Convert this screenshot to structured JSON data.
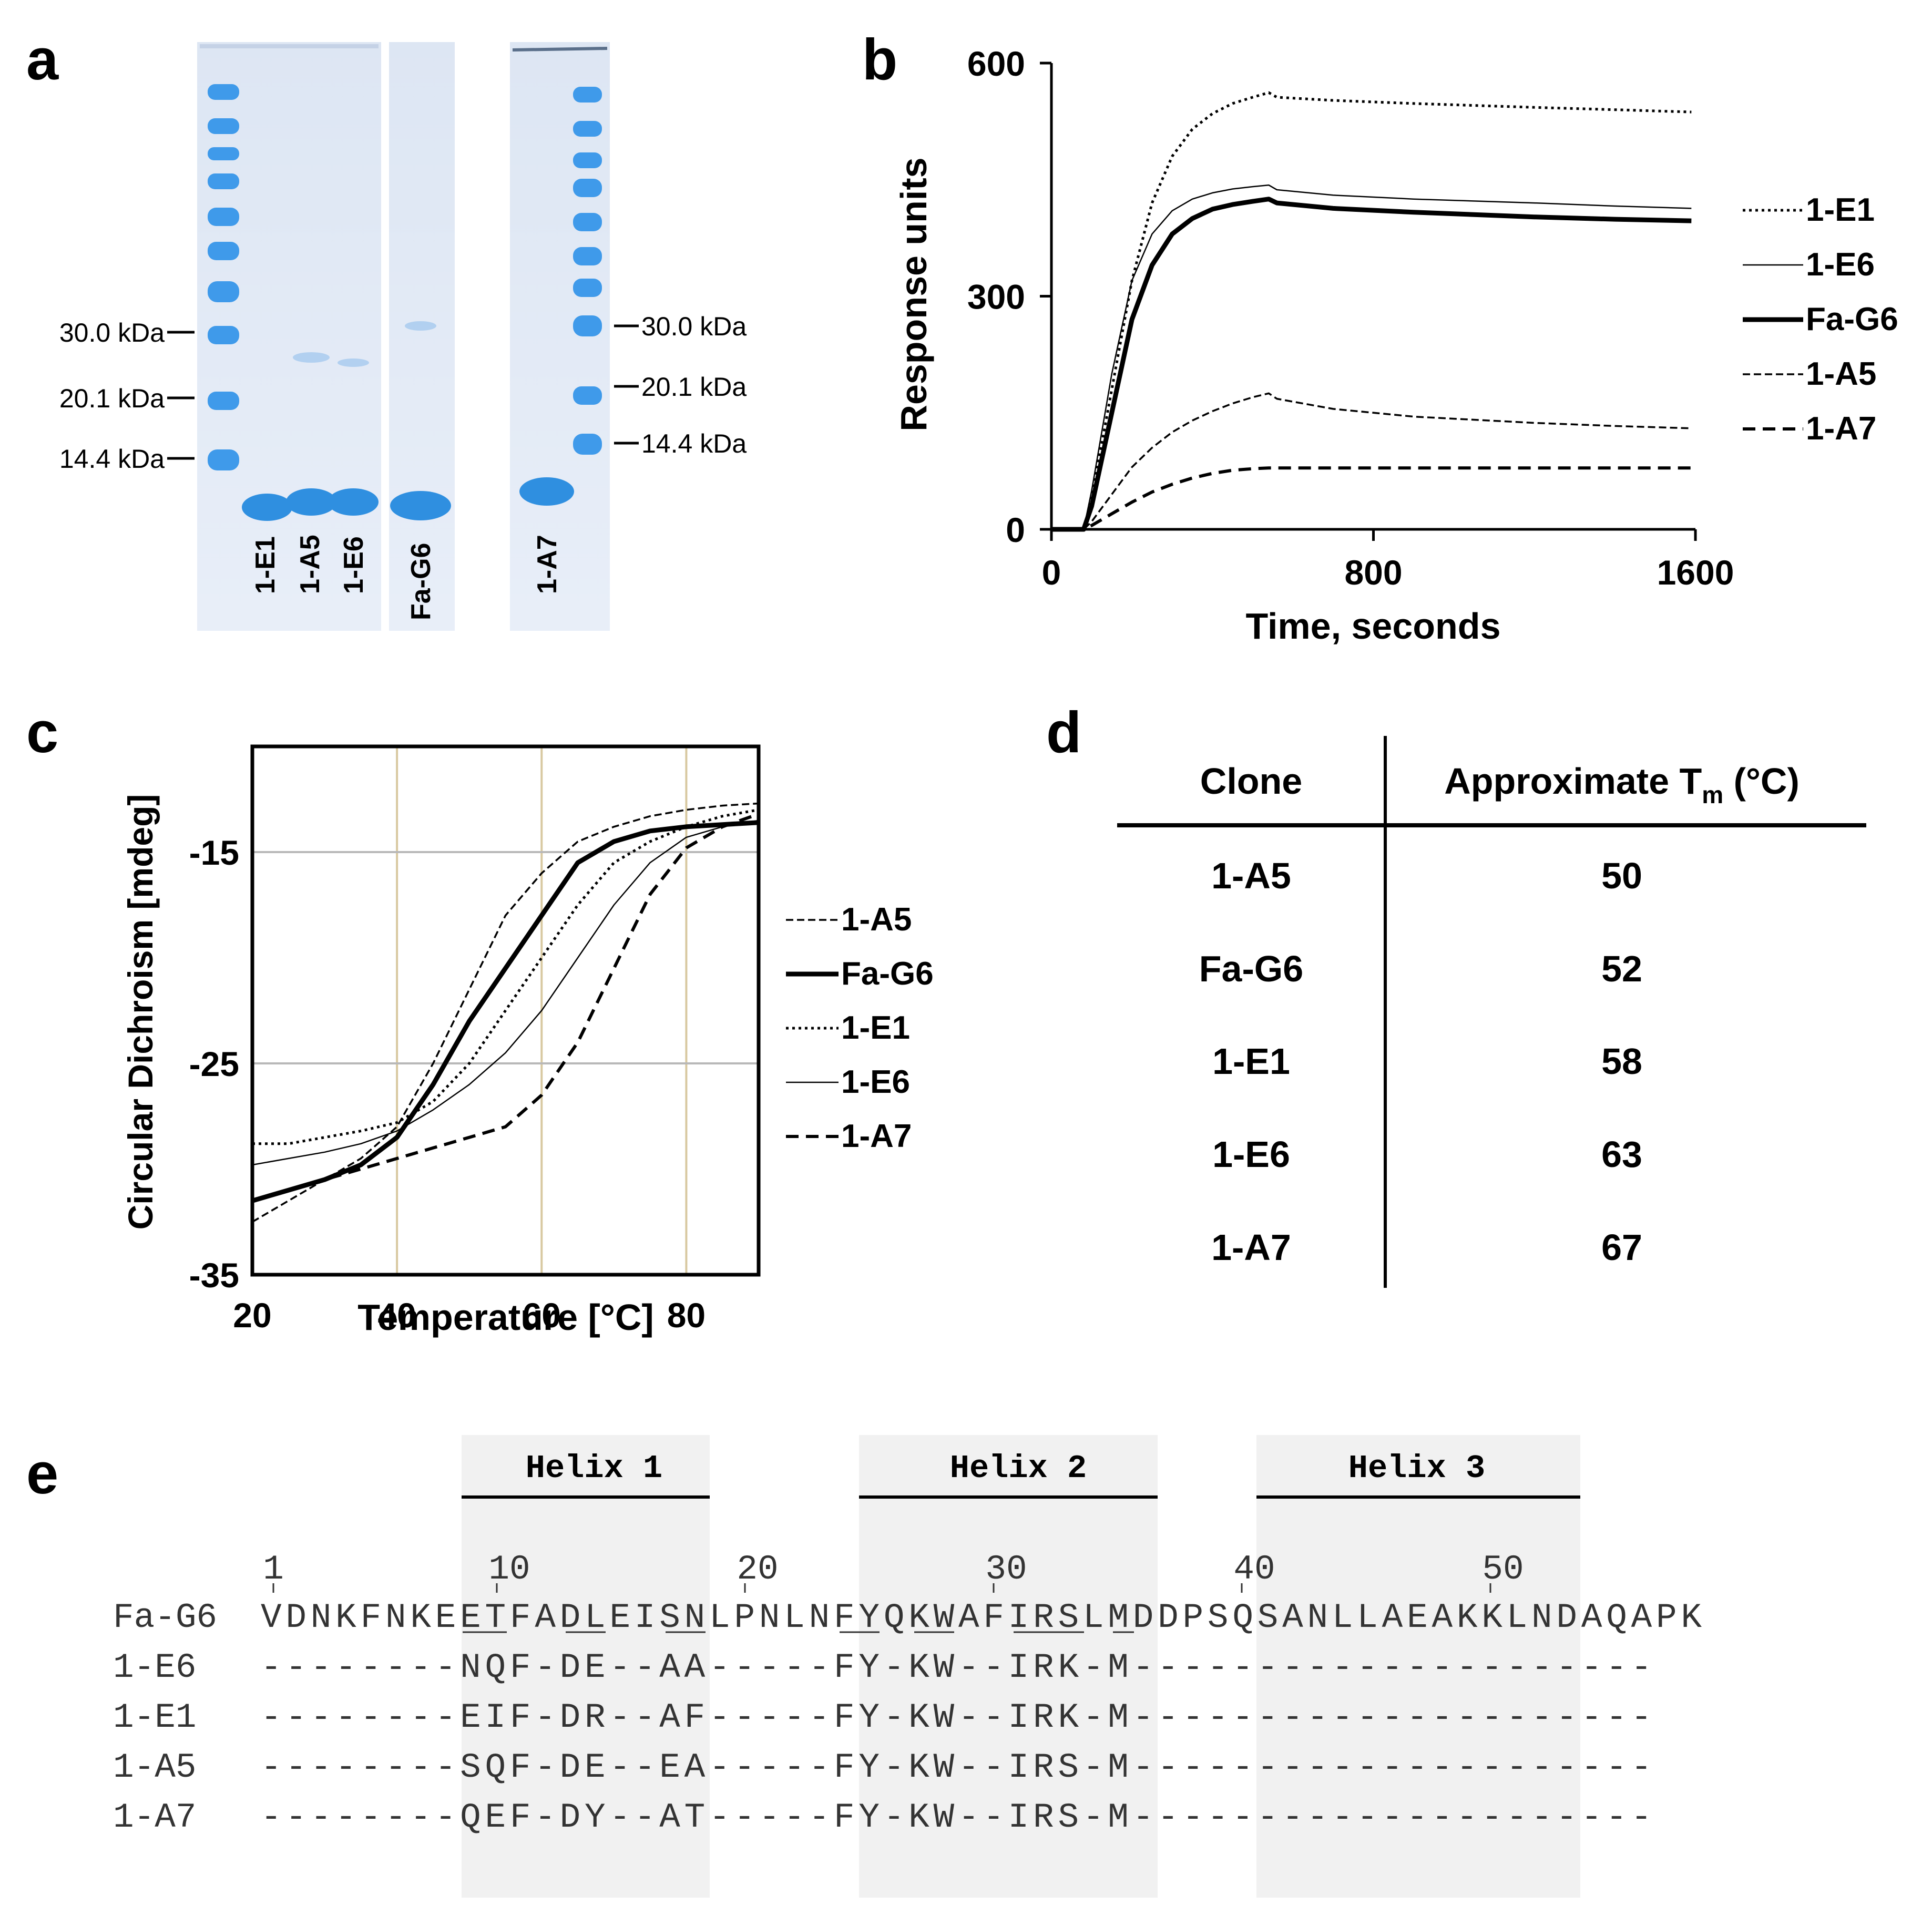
{
  "panel_labels": {
    "a": "a",
    "b": "b",
    "c": "c",
    "d": "d",
    "e": "e"
  },
  "gel": {
    "left_markers": [
      "30.0 kDa",
      "20.1 kDa",
      "14.4 kDa"
    ],
    "right_markers": [
      "30.0 kDa",
      "20.1 kDa",
      "14.4 kDa"
    ],
    "lanes": [
      "1-E1",
      "1-A5",
      "1-E6",
      "Fa-G6",
      "1-A7"
    ],
    "colors": {
      "band": "#2f8fe0",
      "gel_bg": "#e4ecf8"
    }
  },
  "chart_data": [
    {
      "panel": "b",
      "type": "line",
      "xlabel": "Time, seconds",
      "ylabel": "Response units",
      "xlim": [
        0,
        1600
      ],
      "ylim": [
        0,
        600
      ],
      "xticks": [
        0,
        800,
        1600
      ],
      "yticks": [
        0,
        300,
        600
      ],
      "grid": false,
      "legend_position": "right",
      "series": [
        {
          "name": "1-E1",
          "style": "dotted",
          "x": [
            0,
            80,
            100,
            150,
            200,
            250,
            300,
            350,
            400,
            450,
            500,
            540,
            560,
            700,
            900,
            1200,
            1400,
            1590
          ],
          "y": [
            0,
            0,
            40,
            180,
            320,
            420,
            480,
            515,
            535,
            548,
            556,
            562,
            556,
            552,
            548,
            543,
            540,
            537
          ]
        },
        {
          "name": "1-E6",
          "style": "thin",
          "x": [
            0,
            80,
            100,
            150,
            200,
            250,
            300,
            350,
            400,
            450,
            500,
            540,
            560,
            700,
            900,
            1200,
            1400,
            1590
          ],
          "y": [
            0,
            0,
            50,
            200,
            320,
            380,
            410,
            425,
            433,
            438,
            441,
            443,
            437,
            430,
            425,
            420,
            416,
            413
          ]
        },
        {
          "name": "Fa-G6",
          "style": "thick",
          "x": [
            0,
            80,
            100,
            150,
            200,
            250,
            300,
            350,
            400,
            450,
            500,
            540,
            560,
            700,
            900,
            1200,
            1400,
            1590
          ],
          "y": [
            0,
            0,
            30,
            150,
            270,
            340,
            380,
            400,
            412,
            418,
            422,
            425,
            420,
            413,
            408,
            402,
            399,
            397
          ]
        },
        {
          "name": "1-A5",
          "style": "dashed-fine",
          "x": [
            0,
            80,
            100,
            150,
            200,
            250,
            300,
            350,
            400,
            450,
            500,
            540,
            560,
            700,
            900,
            1200,
            1400,
            1590
          ],
          "y": [
            0,
            0,
            10,
            45,
            80,
            105,
            125,
            140,
            152,
            162,
            170,
            175,
            168,
            155,
            145,
            137,
            133,
            130
          ]
        },
        {
          "name": "1-A7",
          "style": "dashed",
          "x": [
            0,
            80,
            100,
            150,
            200,
            250,
            300,
            350,
            400,
            450,
            500,
            540,
            560,
            700,
            900,
            1200,
            1400,
            1590
          ],
          "y": [
            0,
            0,
            5,
            20,
            35,
            48,
            58,
            66,
            72,
            76,
            78,
            79,
            79,
            79,
            79,
            79,
            79,
            79
          ]
        }
      ]
    },
    {
      "panel": "c",
      "type": "line",
      "xlabel": "Temperature [°C]",
      "ylabel": "Circular Dichroism [mdeg]",
      "xlim": [
        20,
        90
      ],
      "ylim": [
        -35,
        -10
      ],
      "xticks": [
        20,
        40,
        60,
        80
      ],
      "yticks": [
        -35,
        -25,
        -15
      ],
      "grid": true,
      "legend_position": "right",
      "series": [
        {
          "name": "1-A5",
          "style": "dashed-fine",
          "x": [
            20,
            25,
            30,
            35,
            40,
            45,
            50,
            55,
            60,
            65,
            70,
            75,
            80,
            85,
            90
          ],
          "y": [
            -32.5,
            -31.5,
            -30.5,
            -29.5,
            -28,
            -25,
            -21.5,
            -18,
            -16,
            -14.5,
            -13.8,
            -13.3,
            -13,
            -12.8,
            -12.7
          ]
        },
        {
          "name": "Fa-G6",
          "style": "thick",
          "x": [
            20,
            25,
            30,
            35,
            40,
            45,
            50,
            55,
            60,
            65,
            70,
            75,
            80,
            85,
            90
          ],
          "y": [
            -31.5,
            -31,
            -30.5,
            -29.8,
            -28.5,
            -26,
            -23,
            -20.5,
            -18,
            -15.5,
            -14.5,
            -14,
            -13.8,
            -13.7,
            -13.6
          ]
        },
        {
          "name": "1-E1",
          "style": "dotted",
          "x": [
            20,
            25,
            30,
            35,
            40,
            45,
            50,
            55,
            60,
            65,
            70,
            75,
            80,
            85,
            90
          ],
          "y": [
            -28.8,
            -28.8,
            -28.5,
            -28.2,
            -27.8,
            -26.8,
            -25,
            -22.5,
            -20,
            -17.5,
            -15.5,
            -14.5,
            -13.8,
            -13.3,
            -13
          ]
        },
        {
          "name": "1-E6",
          "style": "thin",
          "x": [
            20,
            25,
            30,
            35,
            40,
            45,
            50,
            55,
            60,
            65,
            70,
            75,
            80,
            85,
            90
          ],
          "y": [
            -29.8,
            -29.5,
            -29.2,
            -28.8,
            -28.2,
            -27.2,
            -26,
            -24.5,
            -22.5,
            -20,
            -17.5,
            -15.5,
            -14.3,
            -13.8,
            -13.5
          ]
        },
        {
          "name": "1-A7",
          "style": "dashed",
          "x": [
            20,
            25,
            30,
            35,
            40,
            45,
            50,
            55,
            60,
            65,
            70,
            75,
            80,
            85,
            90
          ],
          "y": [
            -31.5,
            -31,
            -30.5,
            -30,
            -29.5,
            -29,
            -28.5,
            -28,
            -26.5,
            -24,
            -20.5,
            -17,
            -14.8,
            -13.8,
            -13.2
          ]
        }
      ]
    }
  ],
  "table": {
    "header_clone": "Clone",
    "header_tm_prefix": "Approximate  T",
    "header_tm_sub": "m",
    "header_tm_suffix": " (°C)",
    "rows": [
      {
        "clone": "1-A5",
        "tm": "50"
      },
      {
        "clone": "Fa-G6",
        "tm": "52"
      },
      {
        "clone": "1-E1",
        "tm": "58"
      },
      {
        "clone": "1-E6",
        "tm": "63"
      },
      {
        "clone": "1-A7",
        "tm": "67"
      }
    ]
  },
  "alignment": {
    "helices": [
      "Helix 1",
      "Helix 2",
      "Helix 3"
    ],
    "ruler_numbers": [
      "1",
      "10",
      "20",
      "30",
      "40",
      "50"
    ],
    "rows": [
      {
        "name": "Fa-G6",
        "seq": "VDNKFNKEETFADLEISNLPNLNFYQKWAFIRSLMDDPSQSANLLAEAKKLNDAQAPK"
      },
      {
        "name": "1-E6",
        "seq": "--------NQF-DE--AA-----FY-KW--IRK-M---------------------"
      },
      {
        "name": "1-E1",
        "seq": "--------EIF-DR--AF-----FY-KW--IRK-M---------------------"
      },
      {
        "name": "1-A5",
        "seq": "--------SQF-DE--EA-----FY-KW--IRS-M---------------------"
      },
      {
        "name": "1-A7",
        "seq": "--------QEF-DY--AT-----FY-KW--IRS-M---------------------"
      }
    ]
  }
}
